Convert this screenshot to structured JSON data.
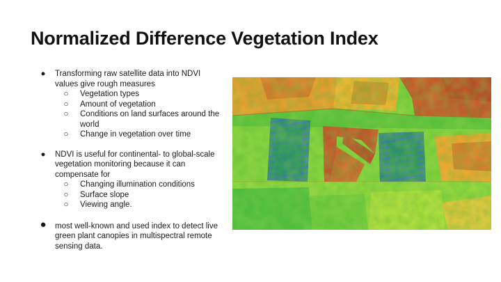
{
  "title": "Normalized Difference Vegetation Index",
  "bullets": [
    {
      "text": "Transforming raw satellite data into NDVI values give rough measures",
      "sub": [
        "Vegetation types",
        "Amount of vegetation",
        "Conditions on land surfaces around the world",
        "Change in vegetation over time"
      ]
    },
    {
      "text": "NDVI is useful for continental- to global-scale vegetation monitoring because it can compensate for",
      "sub": [
        "Changing illumination conditions",
        "Surface slope",
        "Viewing angle."
      ]
    },
    {
      "text": "most well-known and used index to detect live green plant canopies in multispectral remote sensing data.",
      "sub": []
    }
  ],
  "bullet_glyph": "●",
  "sub_glyph": "○",
  "colors": {
    "bare_soil": "#c0562a",
    "sparse": "#e7a52d",
    "moderate": "#8ed43a",
    "dense": "#1fa24a",
    "water_blue": "#3a78a8"
  }
}
